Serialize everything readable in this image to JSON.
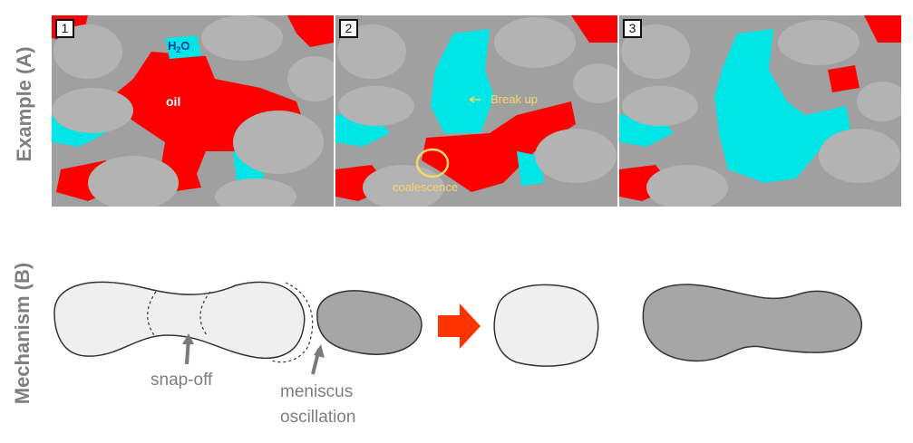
{
  "row_labels": {
    "example": "Example (A)",
    "mechanism": "Mechanism (B)"
  },
  "panels": [
    {
      "number": "1"
    },
    {
      "number": "2"
    },
    {
      "number": "3"
    }
  ],
  "annotations": {
    "water": "H",
    "water_sub": "2",
    "water_o": "O",
    "oil": "oil",
    "break_up": "Break up",
    "coalescence": "coalescence",
    "snap_off": "snap-off",
    "meniscus_line1": "meniscus",
    "meniscus_line2": "oscillation"
  },
  "colors": {
    "oil": "#ff0000",
    "water": "#00e5e5",
    "grain": "#b3b3b3",
    "annotation_yellow": "#f5d86a",
    "arrow": "#ff3300",
    "label_gray": "#7f7f7f"
  }
}
